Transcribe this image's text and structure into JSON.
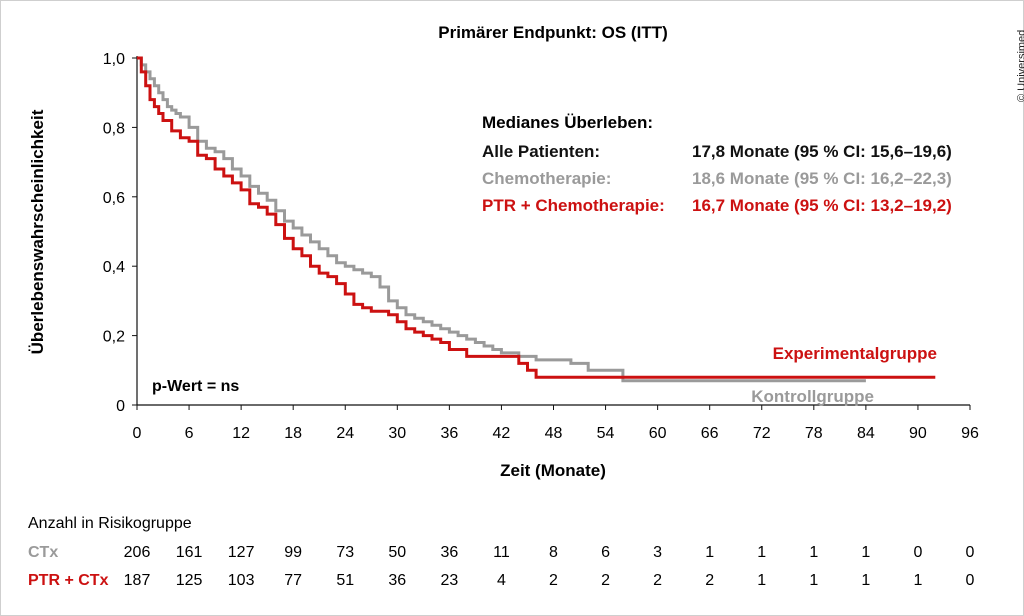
{
  "copyright": "© Universimed",
  "chart_data": {
    "type": "line",
    "title": "Primärer Endpunkt: OS (ITT)",
    "xlabel": "Zeit (Monate)",
    "ylabel": "Überlebenswahrscheinlichkeit",
    "xlim": [
      0,
      96
    ],
    "ylim": [
      0,
      1.0
    ],
    "xticks": [
      "0",
      "6",
      "12",
      "18",
      "24",
      "30",
      "36",
      "42",
      "48",
      "54",
      "60",
      "66",
      "72",
      "78",
      "84",
      "90",
      "96"
    ],
    "yticks": [
      "0",
      "0,2",
      "0,4",
      "0,6",
      "0,8",
      "1,0"
    ],
    "grid": false,
    "annotations": {
      "pvalue": "p-Wert = ns",
      "median_heading": "Medianes Überleben:",
      "median_rows": [
        {
          "label": "Alle Patienten:",
          "value": "17,8 Monate (95 % CI: 15,6–19,6)",
          "color": "#111111"
        },
        {
          "label": "Chemotherapie:",
          "value": "18,6 Monate (95 % CI: 16,2–22,3)",
          "color": "#9a9a9a"
        },
        {
          "label": "PTR + Chemotherapie:",
          "value": "16,7 Monate (95 % CI: 13,2–19,2)",
          "color": "#cc1111"
        }
      ],
      "experimental_label": "Experimentalgruppe",
      "control_label": "Kontrollgruppe"
    },
    "series": [
      {
        "name": "Chemotherapie",
        "color": "#9a9a9a",
        "x": [
          0,
          0.5,
          1,
          1.5,
          2,
          2.5,
          3,
          3.5,
          4,
          4.5,
          5,
          6,
          7,
          8,
          9,
          10,
          11,
          12,
          13,
          14,
          15,
          16,
          17,
          18,
          19,
          20,
          21,
          22,
          23,
          24,
          25,
          26,
          27,
          28,
          29,
          30,
          31,
          32,
          33,
          34,
          35,
          36,
          37,
          38,
          39,
          40,
          41,
          42,
          44,
          46,
          48,
          50,
          52,
          54,
          56,
          60,
          66,
          72,
          78,
          84
        ],
        "y": [
          1.0,
          0.98,
          0.96,
          0.94,
          0.92,
          0.9,
          0.88,
          0.86,
          0.85,
          0.84,
          0.83,
          0.8,
          0.76,
          0.74,
          0.73,
          0.71,
          0.68,
          0.66,
          0.63,
          0.61,
          0.59,
          0.56,
          0.53,
          0.51,
          0.49,
          0.47,
          0.45,
          0.43,
          0.41,
          0.4,
          0.39,
          0.38,
          0.37,
          0.34,
          0.3,
          0.28,
          0.26,
          0.25,
          0.24,
          0.23,
          0.22,
          0.21,
          0.2,
          0.19,
          0.18,
          0.17,
          0.16,
          0.15,
          0.14,
          0.13,
          0.13,
          0.12,
          0.1,
          0.1,
          0.07,
          0.07,
          0.07,
          0.07,
          0.07,
          0.07
        ]
      },
      {
        "name": "PTR + Chemotherapie",
        "color": "#cc1111",
        "x": [
          0,
          0.5,
          1,
          1.5,
          2,
          2.5,
          3,
          4,
          5,
          6,
          7,
          8,
          9,
          10,
          11,
          12,
          13,
          14,
          15,
          16,
          17,
          18,
          19,
          20,
          21,
          22,
          23,
          24,
          25,
          26,
          27,
          28,
          29,
          30,
          31,
          32,
          33,
          34,
          35,
          36,
          38,
          40,
          42,
          44,
          45,
          46,
          48,
          50,
          55,
          60,
          66,
          72,
          78,
          84,
          90,
          92
        ],
        "y": [
          1.0,
          0.96,
          0.92,
          0.88,
          0.86,
          0.84,
          0.82,
          0.79,
          0.77,
          0.76,
          0.72,
          0.71,
          0.68,
          0.66,
          0.64,
          0.62,
          0.58,
          0.57,
          0.55,
          0.52,
          0.48,
          0.45,
          0.43,
          0.4,
          0.38,
          0.37,
          0.35,
          0.32,
          0.29,
          0.28,
          0.27,
          0.27,
          0.26,
          0.24,
          0.22,
          0.21,
          0.2,
          0.19,
          0.18,
          0.16,
          0.14,
          0.14,
          0.14,
          0.12,
          0.1,
          0.08,
          0.08,
          0.08,
          0.08,
          0.08,
          0.08,
          0.08,
          0.08,
          0.08,
          0.08,
          0.08
        ]
      }
    ],
    "risk_table": {
      "heading": "Anzahl in Risikogruppe",
      "rows": [
        {
          "label": "CTx",
          "color": "#9a9a9a",
          "values": [
            "206",
            "161",
            "127",
            "99",
            "73",
            "50",
            "36",
            "11",
            "8",
            "6",
            "3",
            "1",
            "1",
            "1",
            "1",
            "0",
            "0"
          ]
        },
        {
          "label": "PTR + CTx",
          "color": "#cc1111",
          "values": [
            "187",
            "125",
            "103",
            "77",
            "51",
            "36",
            "23",
            "4",
            "2",
            "2",
            "2",
            "2",
            "1",
            "1",
            "1",
            "1",
            "0"
          ]
        }
      ]
    }
  }
}
